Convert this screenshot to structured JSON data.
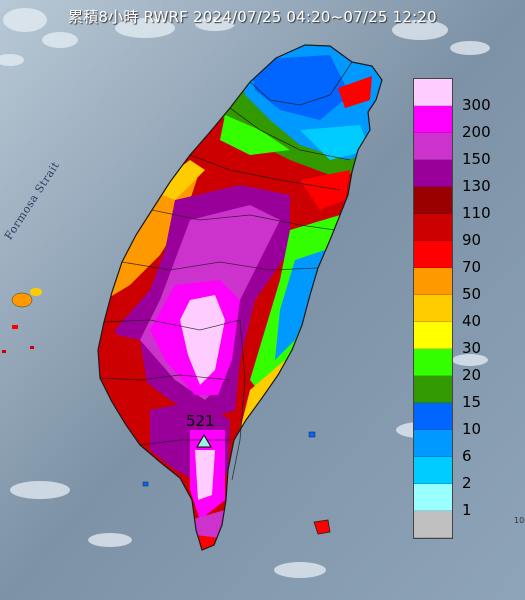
{
  "title": "累積8小時 RWRF 2024/07/25 04:20~07/25 12:20",
  "sea_label": "Formosa Strait",
  "max_marker": {
    "value": "521",
    "icon": "triangle-marker-icon"
  },
  "edge_label": "10",
  "legend": [
    {
      "label": "300",
      "color": "#ffccff"
    },
    {
      "label": "200",
      "color": "#ff00ff"
    },
    {
      "label": "150",
      "color": "#cc33cc"
    },
    {
      "label": "130",
      "color": "#990099"
    },
    {
      "label": "110",
      "color": "#990000"
    },
    {
      "label": "90",
      "color": "#cc0000"
    },
    {
      "label": "70",
      "color": "#ff0000"
    },
    {
      "label": "50",
      "color": "#ff9900"
    },
    {
      "label": "40",
      "color": "#ffcc00"
    },
    {
      "label": "30",
      "color": "#ffff00"
    },
    {
      "label": "20",
      "color": "#33ff00"
    },
    {
      "label": "15",
      "color": "#339900"
    },
    {
      "label": "10",
      "color": "#0066ff"
    },
    {
      "label": "6",
      "color": "#0099ff"
    },
    {
      "label": "2",
      "color": "#00ccff"
    },
    {
      "label": "1",
      "color": "#99ffff"
    },
    {
      "label": "",
      "color": "#c0c0c0"
    }
  ]
}
